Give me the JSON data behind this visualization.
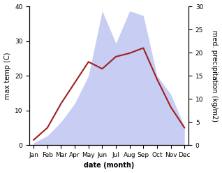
{
  "months": [
    "Jan",
    "Feb",
    "Mar",
    "Apr",
    "May",
    "Jun",
    "Jul",
    "Aug",
    "Sep",
    "Oct",
    "Nov",
    "Dec"
  ],
  "temperature": [
    1.5,
    5.0,
    12.0,
    18.0,
    24.0,
    22.0,
    25.5,
    26.5,
    28.0,
    19.0,
    11.0,
    5.0
  ],
  "precipitation": [
    0.5,
    2.0,
    5.0,
    9.0,
    15.0,
    29.0,
    22.0,
    29.0,
    28.0,
    15.0,
    11.0,
    4.0
  ],
  "temp_color": "#a02020",
  "precip_color": "#b0b8ee",
  "ylabel_left": "max temp (C)",
  "ylabel_right": "med. precipitation (kg/m2)",
  "xlabel": "date (month)",
  "ylim_left": [
    0,
    40
  ],
  "ylim_right": [
    0,
    30
  ],
  "bg_color": "#ffffff",
  "label_fontsize": 7,
  "tick_fontsize": 6.5
}
